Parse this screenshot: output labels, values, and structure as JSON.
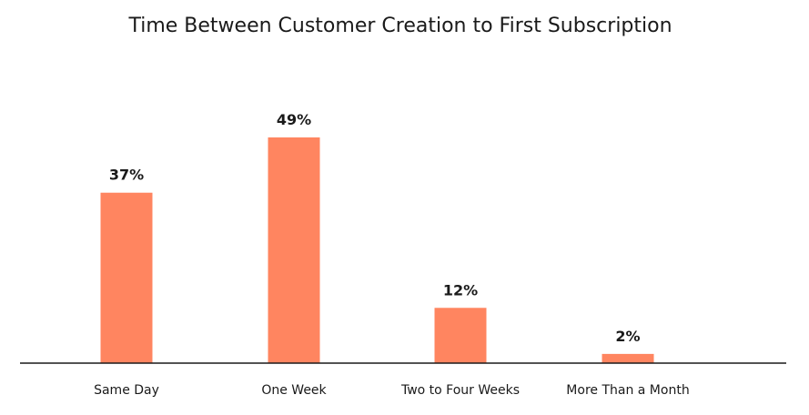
{
  "chart_data": {
    "type": "bar",
    "title": "Time Between Customer Creation to First Subscription",
    "categories": [
      "Same Day",
      "One Week",
      "Two to Four Weeks",
      "More Than a Month"
    ],
    "values": [
      37,
      49,
      12,
      2
    ],
    "value_labels": [
      "37%",
      "49%",
      "12%",
      "2%"
    ],
    "unit": "%",
    "ylim": [
      0,
      49
    ],
    "grid": false,
    "bar_color": "#FF8560",
    "axis_color": "#1a1a1a"
  }
}
